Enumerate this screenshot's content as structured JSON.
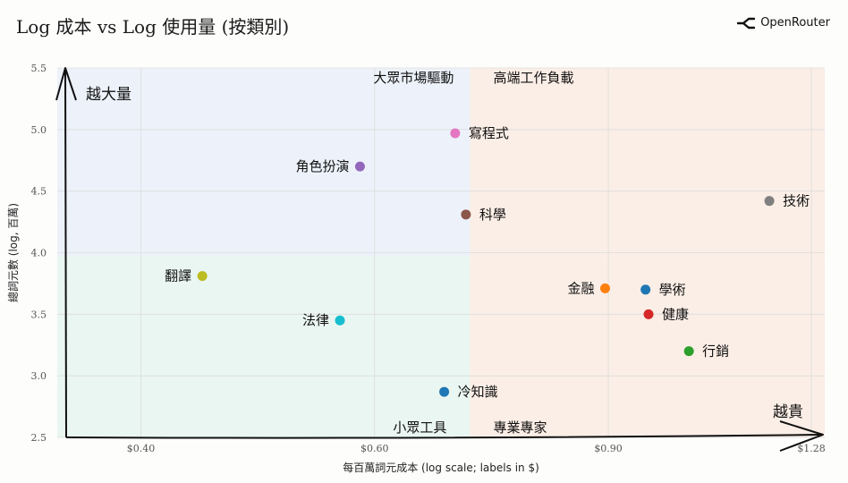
{
  "title": "Log 成本 vs Log 使用量 (按類別)",
  "brand": {
    "name": "OpenRouter",
    "icon": "openrouter-logo-icon"
  },
  "chart_data": {
    "type": "scatter",
    "title": "Log 成本 vs Log 使用量 (按類別)",
    "xlabel": "每百萬詞元成本 (log scale; labels in $)",
    "ylabel": "總詞元數 (log, 百萬)",
    "x_scale": "log",
    "xlim": [
      0.346,
      1.31
    ],
    "ylim": [
      2.5,
      5.5
    ],
    "x_ticks": [
      {
        "value": 0.4,
        "label": "$0.40"
      },
      {
        "value": 0.6,
        "label": "$0.60"
      },
      {
        "value": 0.9,
        "label": "$0.90"
      },
      {
        "value": 1.28,
        "label": "$1.28"
      }
    ],
    "y_ticks": [
      {
        "value": 2.5,
        "label": "2.5"
      },
      {
        "value": 3.0,
        "label": "3.0"
      },
      {
        "value": 3.5,
        "label": "3.5"
      },
      {
        "value": 4.0,
        "label": "4.0"
      },
      {
        "value": 4.5,
        "label": "4.5"
      },
      {
        "value": 5.0,
        "label": "5.0"
      },
      {
        "value": 5.5,
        "label": "5.5"
      }
    ],
    "grid": true,
    "quadrant_split": {
      "x": 0.708,
      "y": 3.97
    },
    "quadrant_labels": [
      {
        "text": "大眾市場驅動",
        "quadrant": "top-left"
      },
      {
        "text": "高端工作負載",
        "quadrant": "top-right"
      },
      {
        "text": "小眾工具",
        "quadrant": "bottom-left"
      },
      {
        "text": "專業專家",
        "quadrant": "bottom-right"
      }
    ],
    "arrow_labels": {
      "y": "越大量",
      "x": "越貴"
    },
    "colors": {
      "top_left_bg": "#edf2fa",
      "top_right_bg": "#fbeee6",
      "bottom_left_bg": "#eaf6f1",
      "bottom_right_bg": "#fbeee6"
    },
    "points": [
      {
        "label": "寫程式",
        "x": 0.69,
        "y": 4.97,
        "color": "#e377c2",
        "label_side": "right"
      },
      {
        "label": "角色扮演",
        "x": 0.585,
        "y": 4.7,
        "color": "#9467bd",
        "label_side": "left"
      },
      {
        "label": "科學",
        "x": 0.703,
        "y": 4.31,
        "color": "#8c564b",
        "label_side": "right"
      },
      {
        "label": "技術",
        "x": 1.19,
        "y": 4.42,
        "color": "#7f7f7f",
        "label_side": "right"
      },
      {
        "label": "翻譯",
        "x": 0.445,
        "y": 3.81,
        "color": "#bcbd22",
        "label_side": "left"
      },
      {
        "label": "法律",
        "x": 0.565,
        "y": 3.45,
        "color": "#17becf",
        "label_side": "left"
      },
      {
        "label": "金融",
        "x": 0.895,
        "y": 3.71,
        "color": "#ff7f0e",
        "label_side": "left"
      },
      {
        "label": "學術",
        "x": 0.96,
        "y": 3.7,
        "color": "#1f77b4",
        "label_side": "right"
      },
      {
        "label": "健康",
        "x": 0.965,
        "y": 3.5,
        "color": "#d62728",
        "label_side": "right"
      },
      {
        "label": "行銷",
        "x": 1.035,
        "y": 3.2,
        "color": "#2ca02c",
        "label_side": "right"
      },
      {
        "label": "冷知識",
        "x": 0.677,
        "y": 2.87,
        "color": "#1f77b4",
        "label_side": "right"
      }
    ]
  }
}
